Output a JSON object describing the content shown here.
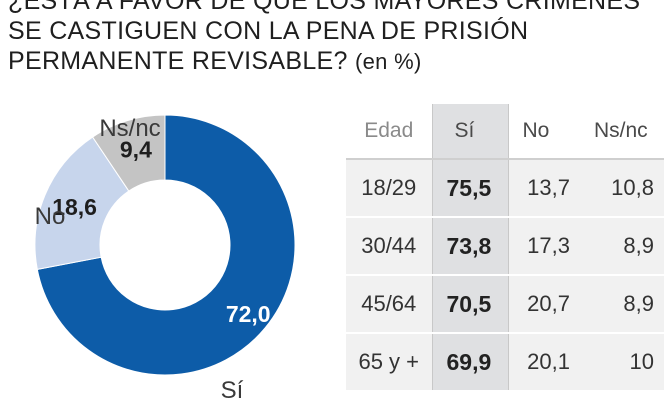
{
  "title": {
    "line1": "¿Está a favor de que los mayores crímenes",
    "line2": "se castiguen con la pena de prisión",
    "line3": "permanente revisable?",
    "unit": "(en %)"
  },
  "chart_data": [
    {
      "type": "pie",
      "donut": true,
      "categories": [
        "Sí",
        "No",
        "Ns/nc"
      ],
      "values": [
        72.0,
        18.6,
        9.4
      ],
      "value_labels": [
        "72,0",
        "18,6",
        "9,4"
      ],
      "colors": [
        "#0d5ca8",
        "#c7d5ec",
        "#c4c4c4"
      ]
    },
    {
      "type": "table",
      "columns": [
        "Edad",
        "Sí",
        "No",
        "Ns/nc"
      ],
      "rows": [
        [
          "18/29",
          "75,5",
          "13,7",
          "10,8"
        ],
        [
          "30/44",
          "73,8",
          "17,3",
          "8,9"
        ],
        [
          "45/64",
          "70,5",
          "20,7",
          "8,9"
        ],
        [
          "65 y +",
          "69,9",
          "20,1",
          "10"
        ]
      ]
    }
  ]
}
